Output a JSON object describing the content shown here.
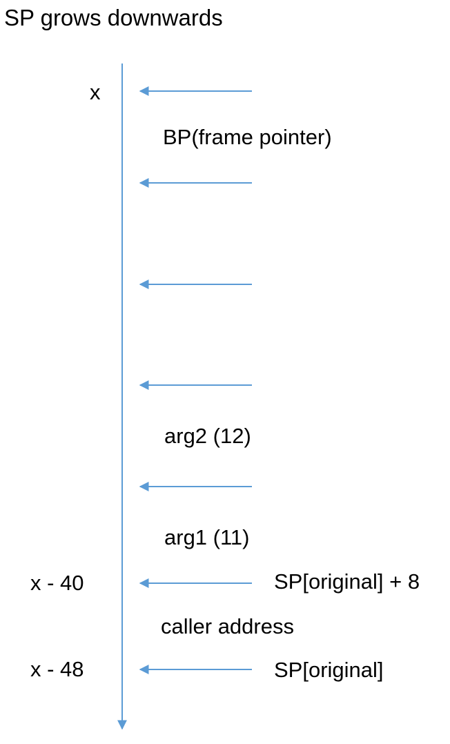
{
  "title": "SP grows downwards",
  "colors": {
    "arrow": "#5b9bd5",
    "text": "#000000"
  },
  "address_labels": {
    "top": "x",
    "sp_plus_8": "x - 40",
    "sp": "x - 48"
  },
  "slot_labels": {
    "bp": "BP(frame pointer)",
    "arg2": "arg2 (12)",
    "arg1": "arg1 (11)",
    "caller": "caller address"
  },
  "pointer_labels": {
    "sp_plus_8": "SP[original] + 8",
    "sp": "SP[original]"
  }
}
